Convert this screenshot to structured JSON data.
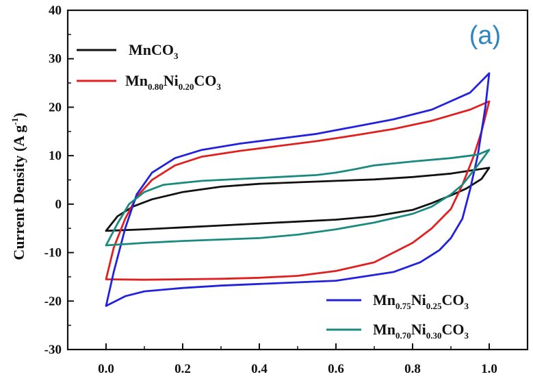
{
  "chart_data": {
    "type": "line",
    "panel_label": "(a)",
    "ylabel": "Current Density (A g",
    "ylabel_sup": "-1",
    "ylabel_close": ")",
    "xlabel": "",
    "xlim": [
      -0.1,
      1.1
    ],
    "ylim": [
      -30,
      40
    ],
    "x_ticks": [
      "0.0",
      "0.2",
      "0.4",
      "0.6",
      "0.8",
      "1.0"
    ],
    "x_tick_values": [
      0.0,
      0.2,
      0.4,
      0.6,
      0.8,
      1.0
    ],
    "y_ticks": [
      "40",
      "30",
      "20",
      "10",
      "0",
      "-10",
      "-20",
      "-30"
    ],
    "y_tick_values": [
      40,
      30,
      20,
      10,
      0,
      -10,
      -20,
      -30
    ],
    "grid": false,
    "legend_top": [
      {
        "base": "MnCO",
        "sub": "3",
        "color": "#111111"
      },
      {
        "parts": [
          [
            "Mn",
            ""
          ],
          [
            "0.80",
            "sub"
          ],
          [
            "Ni",
            ""
          ],
          [
            "0.20",
            "sub"
          ],
          [
            "CO",
            ""
          ],
          [
            "3",
            "sub"
          ]
        ],
        "color": "#e02020"
      }
    ],
    "legend_bottom": [
      {
        "parts": [
          [
            "Mn",
            ""
          ],
          [
            "0.75",
            "sub"
          ],
          [
            "Ni",
            ""
          ],
          [
            "0.25",
            "sub"
          ],
          [
            "CO",
            ""
          ],
          [
            "3",
            "sub"
          ]
        ],
        "color": "#2222dd"
      },
      {
        "parts": [
          [
            "Mn",
            ""
          ],
          [
            "0.70",
            "sub"
          ],
          [
            "Ni",
            ""
          ],
          [
            "0.30",
            "sub"
          ],
          [
            "CO",
            ""
          ],
          [
            "3",
            "sub"
          ]
        ],
        "color": "#1a8a80"
      }
    ],
    "series": [
      {
        "name": "MnCO3",
        "color": "#111111",
        "anodic": [
          [
            0.0,
            -5.5
          ],
          [
            0.03,
            -2.5
          ],
          [
            0.07,
            -0.5
          ],
          [
            0.12,
            1.0
          ],
          [
            0.2,
            2.5
          ],
          [
            0.3,
            3.6
          ],
          [
            0.4,
            4.2
          ],
          [
            0.5,
            4.5
          ],
          [
            0.6,
            4.8
          ],
          [
            0.7,
            5.1
          ],
          [
            0.8,
            5.6
          ],
          [
            0.9,
            6.3
          ],
          [
            1.0,
            7.5
          ]
        ],
        "cathodic": [
          [
            1.0,
            7.5
          ],
          [
            0.98,
            5.2
          ],
          [
            0.94,
            3.2
          ],
          [
            0.9,
            1.8
          ],
          [
            0.85,
            0.2
          ],
          [
            0.8,
            -1.2
          ],
          [
            0.7,
            -2.5
          ],
          [
            0.6,
            -3.2
          ],
          [
            0.5,
            -3.6
          ],
          [
            0.4,
            -4.0
          ],
          [
            0.3,
            -4.4
          ],
          [
            0.2,
            -4.8
          ],
          [
            0.1,
            -5.2
          ],
          [
            0.0,
            -5.5
          ]
        ]
      },
      {
        "name": "Mn0.80Ni0.20CO3",
        "color": "#e02020",
        "anodic": [
          [
            0.0,
            -15.5
          ],
          [
            0.02,
            -9
          ],
          [
            0.05,
            -3
          ],
          [
            0.08,
            1.5
          ],
          [
            0.12,
            5.0
          ],
          [
            0.18,
            8.0
          ],
          [
            0.25,
            9.8
          ],
          [
            0.35,
            11.0
          ],
          [
            0.45,
            12.0
          ],
          [
            0.55,
            13.0
          ],
          [
            0.65,
            14.2
          ],
          [
            0.75,
            15.5
          ],
          [
            0.85,
            17.2
          ],
          [
            0.95,
            19.5
          ],
          [
            1.0,
            21.2
          ]
        ],
        "cathodic": [
          [
            1.0,
            21.2
          ],
          [
            0.98,
            15
          ],
          [
            0.96,
            10
          ],
          [
            0.93,
            4
          ],
          [
            0.9,
            -1
          ],
          [
            0.85,
            -5
          ],
          [
            0.8,
            -8
          ],
          [
            0.75,
            -10
          ],
          [
            0.7,
            -12
          ],
          [
            0.6,
            -13.8
          ],
          [
            0.5,
            -14.8
          ],
          [
            0.4,
            -15.2
          ],
          [
            0.3,
            -15.4
          ],
          [
            0.2,
            -15.5
          ],
          [
            0.1,
            -15.6
          ],
          [
            0.0,
            -15.5
          ]
        ]
      },
      {
        "name": "Mn0.75Ni0.25CO3",
        "color": "#2222dd",
        "anodic": [
          [
            0.0,
            -21
          ],
          [
            0.02,
            -14
          ],
          [
            0.05,
            -5
          ],
          [
            0.08,
            2
          ],
          [
            0.12,
            6.5
          ],
          [
            0.18,
            9.5
          ],
          [
            0.25,
            11.2
          ],
          [
            0.35,
            12.5
          ],
          [
            0.45,
            13.5
          ],
          [
            0.55,
            14.5
          ],
          [
            0.65,
            16
          ],
          [
            0.75,
            17.5
          ],
          [
            0.85,
            19.5
          ],
          [
            0.95,
            23
          ],
          [
            1.0,
            27
          ]
        ],
        "cathodic": [
          [
            1.0,
            27
          ],
          [
            0.99,
            20
          ],
          [
            0.97,
            10
          ],
          [
            0.95,
            3
          ],
          [
            0.93,
            -3
          ],
          [
            0.9,
            -7
          ],
          [
            0.87,
            -9.5
          ],
          [
            0.82,
            -12
          ],
          [
            0.75,
            -14
          ],
          [
            0.6,
            -15.8
          ],
          [
            0.45,
            -16.3
          ],
          [
            0.3,
            -16.8
          ],
          [
            0.2,
            -17.3
          ],
          [
            0.1,
            -18
          ],
          [
            0.05,
            -19
          ],
          [
            0.0,
            -21
          ]
        ]
      },
      {
        "name": "Mn0.70Ni0.30CO3",
        "color": "#1a8a80",
        "anodic": [
          [
            0.0,
            -8.5
          ],
          [
            0.03,
            -4
          ],
          [
            0.06,
            0
          ],
          [
            0.1,
            2.5
          ],
          [
            0.15,
            4.0
          ],
          [
            0.25,
            4.8
          ],
          [
            0.35,
            5.2
          ],
          [
            0.45,
            5.6
          ],
          [
            0.55,
            6.0
          ],
          [
            0.6,
            6.5
          ],
          [
            0.65,
            7.2
          ],
          [
            0.7,
            8.0
          ],
          [
            0.8,
            8.8
          ],
          [
            0.9,
            9.5
          ],
          [
            0.97,
            10.2
          ],
          [
            1.0,
            11.2
          ]
        ],
        "cathodic": [
          [
            1.0,
            11.2
          ],
          [
            0.97,
            8
          ],
          [
            0.93,
            4
          ],
          [
            0.9,
            2
          ],
          [
            0.85,
            -0.5
          ],
          [
            0.8,
            -2
          ],
          [
            0.7,
            -3.8
          ],
          [
            0.6,
            -5.2
          ],
          [
            0.5,
            -6.3
          ],
          [
            0.4,
            -7.0
          ],
          [
            0.3,
            -7.3
          ],
          [
            0.2,
            -7.6
          ],
          [
            0.1,
            -8.0
          ],
          [
            0.0,
            -8.5
          ]
        ]
      }
    ]
  }
}
